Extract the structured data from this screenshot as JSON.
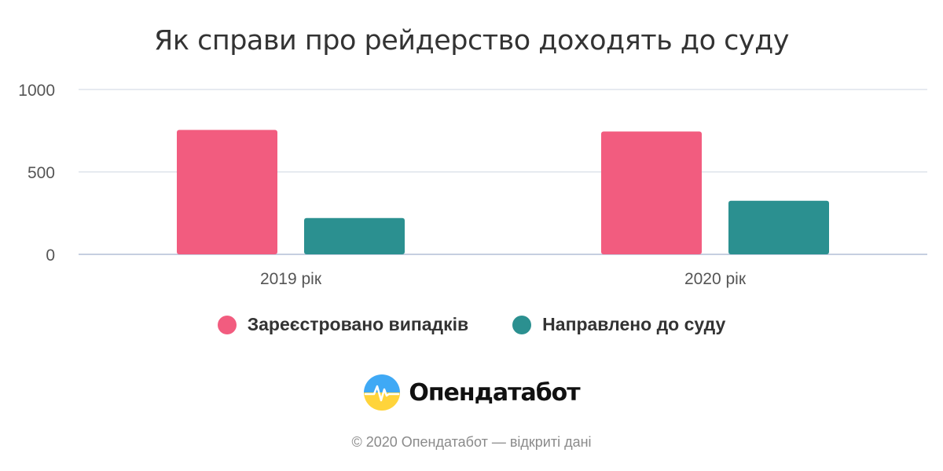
{
  "chart_data": {
    "type": "bar",
    "title": "Як справи про рейдерство доходять до суду",
    "categories": [
      "2019 рік",
      "2020 рік"
    ],
    "series": [
      {
        "name": "Зареєстровано випадків",
        "values": [
          755,
          745
        ],
        "color": "#F25C7F"
      },
      {
        "name": "Направлено до суду",
        "values": [
          220,
          325
        ],
        "color": "#2B9090"
      }
    ],
    "yticks": [
      "0",
      "500",
      "1000"
    ],
    "ylim": [
      0,
      1000
    ],
    "grid": true,
    "legend": "bottom-center"
  },
  "brand": {
    "name": "Опендатабот",
    "icon": "opendatabot-logo-icon"
  },
  "footer": "© 2020 Опендатабот — відкриті дані"
}
